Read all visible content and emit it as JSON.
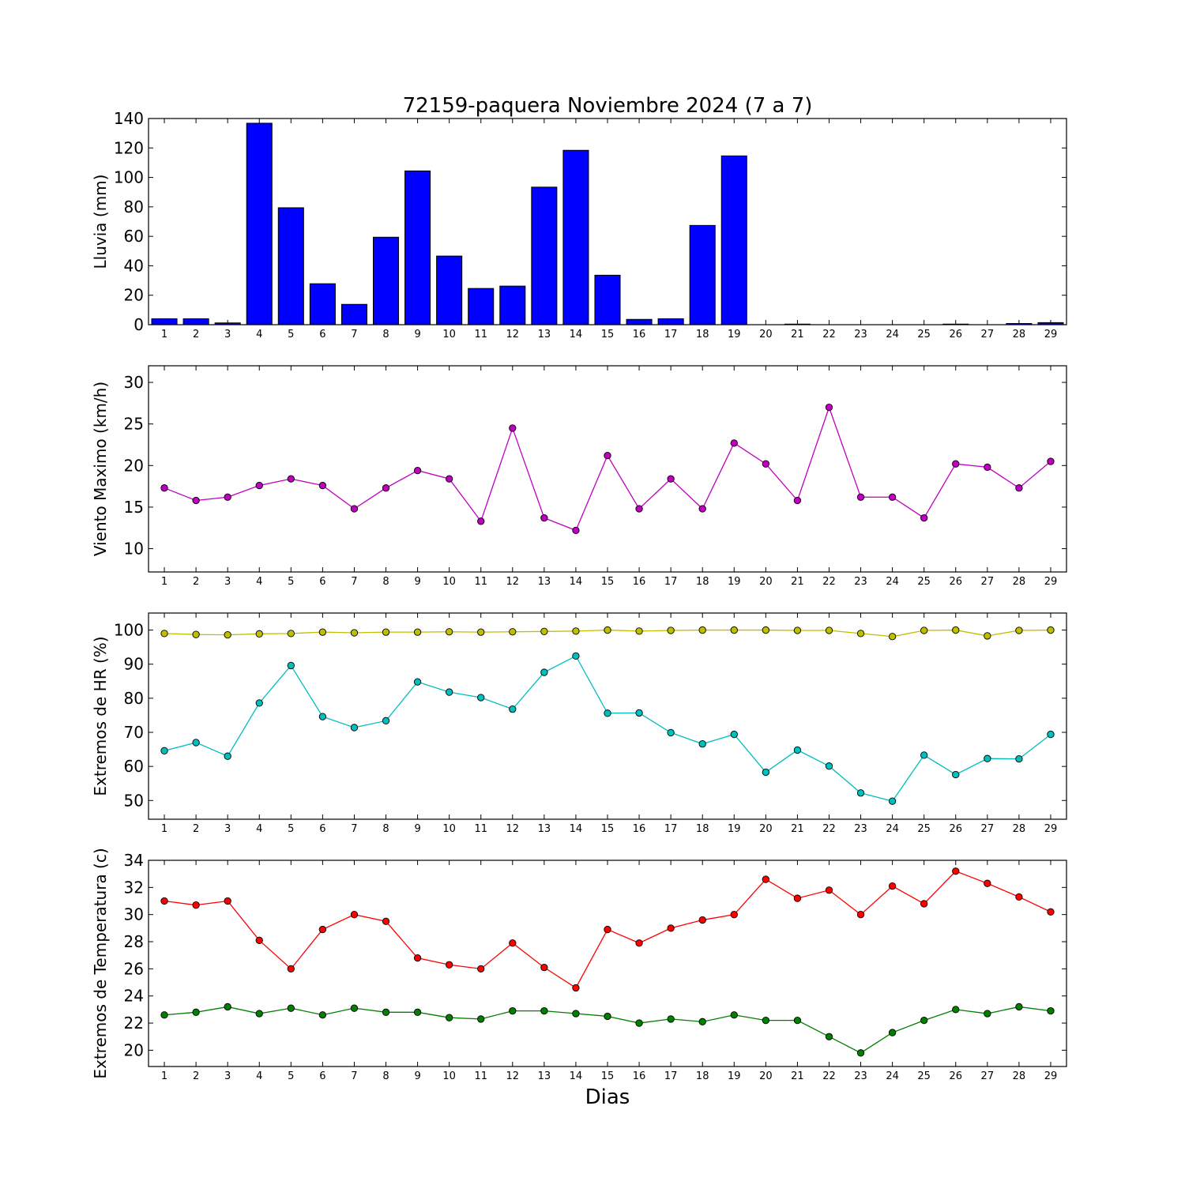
{
  "title": "72159-paquera Noviembre 2024  (7 a 7)",
  "xlabel": "Dias",
  "chart_data": [
    {
      "type": "bar",
      "ylabel": "Lluvia (mm)",
      "ylim": [
        0,
        140
      ],
      "yticks": [
        0,
        20,
        40,
        60,
        80,
        100,
        120,
        140
      ],
      "categories": [
        "1",
        "2",
        "3",
        "4",
        "5",
        "6",
        "7",
        "8",
        "9",
        "10",
        "11",
        "12",
        "13",
        "14",
        "15",
        "16",
        "17",
        "18",
        "19",
        "20",
        "21",
        "22",
        "23",
        "24",
        "25",
        "26",
        "27",
        "28",
        "29"
      ],
      "series": [
        {
          "color": "#0000ff",
          "values": [
            4.0,
            4.0,
            1.2,
            136.8,
            79.4,
            27.8,
            13.8,
            59.4,
            104.4,
            46.6,
            24.6,
            26.2,
            93.4,
            118.4,
            33.6,
            3.6,
            4.0,
            67.4,
            114.6,
            0.0,
            0.4,
            0.0,
            0.0,
            0.0,
            0.0,
            0.4,
            0.0,
            0.8,
            1.4
          ]
        }
      ]
    },
    {
      "type": "line",
      "ylabel": "Viento Maximo (km/h)",
      "ylim": [
        7.2,
        32.0
      ],
      "yticks": [
        10,
        15,
        20,
        25,
        30
      ],
      "categories": [
        "1",
        "2",
        "3",
        "4",
        "5",
        "6",
        "7",
        "8",
        "9",
        "10",
        "11",
        "12",
        "13",
        "14",
        "15",
        "16",
        "17",
        "18",
        "19",
        "20",
        "21",
        "22",
        "23",
        "24",
        "25",
        "26",
        "27",
        "28",
        "29"
      ],
      "series": [
        {
          "color": "#bf00bf",
          "values": [
            17.3,
            15.8,
            16.2,
            17.6,
            18.4,
            17.6,
            14.8,
            17.3,
            19.4,
            18.4,
            13.3,
            24.5,
            13.7,
            12.2,
            21.2,
            14.8,
            18.4,
            14.8,
            22.7,
            20.2,
            15.8,
            27.0,
            16.2,
            16.2,
            13.7,
            20.2,
            19.8,
            17.3,
            20.5
          ]
        }
      ]
    },
    {
      "type": "line",
      "ylabel": "Extremos de HR (%)",
      "ylim": [
        44.5,
        105.0
      ],
      "yticks": [
        50,
        60,
        70,
        80,
        90,
        100
      ],
      "categories": [
        "1",
        "2",
        "3",
        "4",
        "5",
        "6",
        "7",
        "8",
        "9",
        "10",
        "11",
        "12",
        "13",
        "14",
        "15",
        "16",
        "17",
        "18",
        "19",
        "20",
        "21",
        "22",
        "23",
        "24",
        "25",
        "26",
        "27",
        "28",
        "29"
      ],
      "series": [
        {
          "color": "#bfbf00",
          "values": [
            99.0,
            98.7,
            98.6,
            98.9,
            99.0,
            99.4,
            99.2,
            99.4,
            99.4,
            99.5,
            99.4,
            99.5,
            99.6,
            99.7,
            100.0,
            99.7,
            99.9,
            100.0,
            100.0,
            100.0,
            99.9,
            99.9,
            99.0,
            98.1,
            99.9,
            100.0,
            98.3,
            99.9,
            100.0
          ]
        },
        {
          "color": "#00bfbf",
          "values": [
            64.6,
            67.0,
            63.0,
            78.6,
            89.6,
            74.6,
            71.4,
            73.4,
            84.8,
            81.8,
            80.2,
            76.8,
            87.6,
            92.4,
            75.6,
            75.7,
            69.9,
            66.6,
            69.4,
            58.3,
            64.8,
            60.1,
            52.2,
            49.8,
            63.3,
            57.6,
            62.3,
            62.2,
            69.4
          ]
        }
      ]
    },
    {
      "type": "line",
      "ylabel": "Extremos de Temperatura (c)",
      "ylim": [
        18.8,
        34.0
      ],
      "yticks": [
        20,
        22,
        24,
        26,
        28,
        30,
        32,
        34
      ],
      "categories": [
        "1",
        "2",
        "3",
        "4",
        "5",
        "6",
        "7",
        "8",
        "9",
        "10",
        "11",
        "12",
        "13",
        "14",
        "15",
        "16",
        "17",
        "18",
        "19",
        "20",
        "21",
        "22",
        "23",
        "24",
        "25",
        "26",
        "27",
        "28",
        "29"
      ],
      "series": [
        {
          "color": "#ff0000",
          "values": [
            31.0,
            30.7,
            31.0,
            28.1,
            26.0,
            28.9,
            30.0,
            29.5,
            26.8,
            26.3,
            26.0,
            27.9,
            26.1,
            24.6,
            28.9,
            27.9,
            29.0,
            29.6,
            30.0,
            32.6,
            31.2,
            31.8,
            30.0,
            32.1,
            30.8,
            33.2,
            32.3,
            31.3,
            30.2
          ]
        },
        {
          "color": "#007f00",
          "values": [
            22.6,
            22.8,
            23.2,
            22.7,
            23.1,
            22.6,
            23.1,
            22.8,
            22.8,
            22.4,
            22.3,
            22.9,
            22.9,
            22.7,
            22.5,
            22.0,
            22.3,
            22.1,
            22.6,
            22.2,
            22.2,
            21.0,
            19.8,
            21.3,
            22.2,
            23.0,
            22.7,
            23.2,
            22.9
          ]
        }
      ]
    }
  ]
}
